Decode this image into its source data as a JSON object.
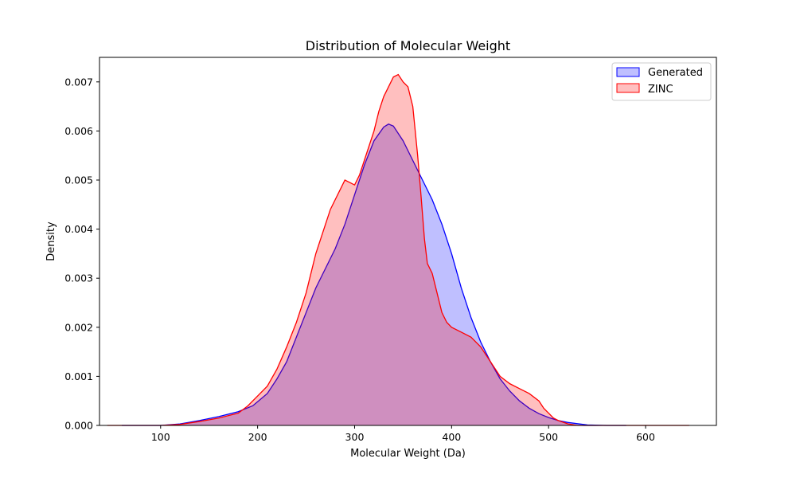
{
  "chart_data": {
    "type": "area",
    "title": "Distribution of Molecular Weight",
    "xlabel": "Molecular Weight (Da)",
    "ylabel": "Density",
    "xlim": [
      37,
      673
    ],
    "ylim": [
      0,
      0.0075
    ],
    "xticks": [
      100,
      200,
      300,
      400,
      500,
      600
    ],
    "yticks": [
      0.0,
      0.001,
      0.002,
      0.003,
      0.004,
      0.005,
      0.006,
      0.007
    ],
    "ytick_labels": [
      "0.000",
      "0.001",
      "0.002",
      "0.003",
      "0.004",
      "0.005",
      "0.006",
      "0.007"
    ],
    "legend_position": "top-right",
    "grid": false,
    "series": [
      {
        "name": "Generated",
        "color": "#0000ff",
        "fill": "#0000ff",
        "fill_opacity": 0.25,
        "x": [
          60,
          80,
          100,
          120,
          140,
          160,
          180,
          195,
          210,
          220,
          230,
          240,
          250,
          260,
          270,
          280,
          290,
          300,
          310,
          320,
          330,
          335,
          340,
          350,
          360,
          370,
          380,
          390,
          400,
          410,
          420,
          430,
          440,
          450,
          460,
          470,
          480,
          490,
          500,
          510,
          520,
          540,
          560,
          580
        ],
        "y": [
          0.0,
          0.0,
          0.0,
          3e-05,
          0.0001,
          0.00018,
          0.00028,
          0.0004,
          0.00065,
          0.00095,
          0.0013,
          0.0018,
          0.0023,
          0.0028,
          0.0032,
          0.0036,
          0.0041,
          0.0047,
          0.0053,
          0.0058,
          0.00608,
          0.00614,
          0.0061,
          0.0058,
          0.0054,
          0.005,
          0.0046,
          0.0041,
          0.0035,
          0.0028,
          0.0022,
          0.0017,
          0.0013,
          0.00095,
          0.0007,
          0.0005,
          0.00035,
          0.00024,
          0.00016,
          0.0001,
          6e-05,
          1e-05,
          0.0,
          0.0
        ]
      },
      {
        "name": "ZINC",
        "color": "#ff0000",
        "fill": "#ff0000",
        "fill_opacity": 0.25,
        "x": [
          45,
          80,
          100,
          120,
          140,
          160,
          170,
          180,
          190,
          200,
          210,
          220,
          230,
          240,
          250,
          255,
          260,
          265,
          270,
          275,
          280,
          285,
          290,
          295,
          300,
          305,
          310,
          315,
          320,
          325,
          330,
          335,
          340,
          345,
          350,
          355,
          360,
          365,
          368,
          372,
          375,
          380,
          385,
          390,
          395,
          400,
          410,
          420,
          430,
          440,
          450,
          460,
          470,
          480,
          490,
          495,
          500,
          505,
          510,
          520,
          530,
          540,
          560,
          600,
          645
        ],
        "y": [
          0.0,
          0.0,
          0.0,
          2e-05,
          8e-05,
          0.00015,
          0.0002,
          0.00025,
          0.0004,
          0.0006,
          0.0008,
          0.00115,
          0.0016,
          0.0021,
          0.0027,
          0.0031,
          0.0035,
          0.0038,
          0.0041,
          0.0044,
          0.0046,
          0.0048,
          0.005,
          0.00495,
          0.0049,
          0.0051,
          0.0054,
          0.0057,
          0.006,
          0.0064,
          0.0067,
          0.0069,
          0.0071,
          0.00715,
          0.007,
          0.0069,
          0.0065,
          0.0055,
          0.0048,
          0.0038,
          0.0033,
          0.0031,
          0.0027,
          0.0023,
          0.0021,
          0.002,
          0.0019,
          0.0018,
          0.0016,
          0.0013,
          0.001,
          0.00085,
          0.00075,
          0.00065,
          0.0005,
          0.00035,
          0.00025,
          0.00015,
          0.0001,
          3e-05,
          0.0,
          0.0,
          0.0,
          0.0,
          0.0
        ]
      }
    ]
  }
}
